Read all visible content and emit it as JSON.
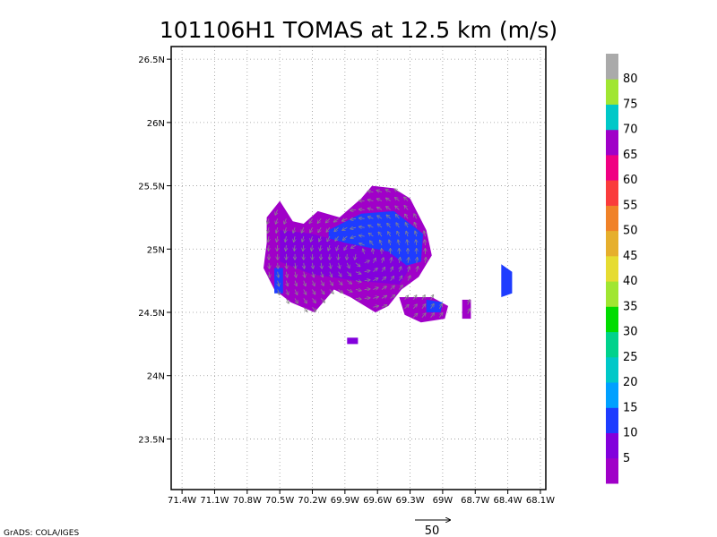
{
  "chart_data": {
    "type": "heatmap",
    "title": "101106H1 TOMAS at 12.5 km (m/s)",
    "credit": "GrADS: COLA/IGES",
    "grid": true,
    "x_ticks": [
      {
        "value": -71.4,
        "label": "71.4W"
      },
      {
        "value": -71.1,
        "label": "71.1W"
      },
      {
        "value": -70.8,
        "label": "70.8W"
      },
      {
        "value": -70.5,
        "label": "70.5W"
      },
      {
        "value": -70.2,
        "label": "70.2W"
      },
      {
        "value": -69.9,
        "label": "69.9W"
      },
      {
        "value": -69.6,
        "label": "69.6W"
      },
      {
        "value": -69.3,
        "label": "69.3W"
      },
      {
        "value": -69.0,
        "label": "69W"
      },
      {
        "value": -68.7,
        "label": "68.7W"
      },
      {
        "value": -68.4,
        "label": "68.4W"
      },
      {
        "value": -68.1,
        "label": "68.1W"
      }
    ],
    "y_ticks": [
      {
        "value": 23.5,
        "label": "23.5N"
      },
      {
        "value": 24.0,
        "label": "24N"
      },
      {
        "value": 24.5,
        "label": "24.5N"
      },
      {
        "value": 25.0,
        "label": "25N"
      },
      {
        "value": 25.5,
        "label": "25.5N"
      },
      {
        "value": 26.0,
        "label": "26N"
      },
      {
        "value": 26.5,
        "label": "26.5N"
      }
    ],
    "xlim": [
      -71.5,
      -68.05
    ],
    "ylim": [
      23.1,
      26.6
    ],
    "colorbar": {
      "levels": [
        "5",
        "10",
        "15",
        "20",
        "25",
        "30",
        "35",
        "40",
        "45",
        "50",
        "55",
        "60",
        "65",
        "70",
        "75",
        "80"
      ],
      "colors": [
        "#a000c8",
        "#8200dc",
        "#1e3cff",
        "#00a0ff",
        "#00c8c8",
        "#00d28c",
        "#00dc00",
        "#a0e632",
        "#e6dc32",
        "#e6af2d",
        "#f08228",
        "#fa3c3c",
        "#f00082",
        "#a000c8",
        "#00c8c8",
        "#a0e632",
        "#aaaaaa"
      ]
    },
    "reference_vector": {
      "label": "50",
      "value": 50
    },
    "wind_regions": [
      {
        "name": "main",
        "points": [
          [
            -70.62,
            25.25
          ],
          [
            -70.5,
            25.38
          ],
          [
            -70.38,
            25.22
          ],
          [
            -70.28,
            25.2
          ],
          [
            -70.15,
            25.3
          ],
          [
            -69.95,
            25.25
          ],
          [
            -69.75,
            25.4
          ],
          [
            -69.65,
            25.5
          ],
          [
            -69.45,
            25.48
          ],
          [
            -69.3,
            25.4
          ],
          [
            -69.15,
            25.15
          ],
          [
            -69.1,
            24.95
          ],
          [
            -69.22,
            24.78
          ],
          [
            -69.38,
            24.68
          ],
          [
            -69.5,
            24.55
          ],
          [
            -69.62,
            24.5
          ],
          [
            -69.85,
            24.62
          ],
          [
            -70.0,
            24.68
          ],
          [
            -70.1,
            24.58
          ],
          [
            -70.18,
            24.5
          ],
          [
            -70.4,
            24.58
          ],
          [
            -70.55,
            24.68
          ],
          [
            -70.65,
            24.85
          ],
          [
            -70.62,
            25.05
          ]
        ],
        "level": 0
      },
      {
        "name": "east-tail",
        "points": [
          [
            -69.4,
            24.62
          ],
          [
            -69.1,
            24.62
          ],
          [
            -68.95,
            24.55
          ],
          [
            -68.98,
            24.45
          ],
          [
            -69.2,
            24.42
          ],
          [
            -69.35,
            24.48
          ]
        ],
        "level": 0
      },
      {
        "name": "blob-68.7",
        "points": [
          [
            -68.82,
            24.6
          ],
          [
            -68.74,
            24.6
          ],
          [
            -68.74,
            24.45
          ],
          [
            -68.82,
            24.45
          ]
        ],
        "level": 0
      },
      {
        "name": "blob-68.4",
        "points": [
          [
            -68.46,
            24.88
          ],
          [
            -68.36,
            24.82
          ],
          [
            -68.36,
            24.65
          ],
          [
            -68.46,
            24.62
          ]
        ],
        "level": 2
      },
      {
        "name": "south-patch",
        "points": [
          [
            -69.88,
            24.3
          ],
          [
            -69.78,
            24.3
          ],
          [
            -69.78,
            24.25
          ],
          [
            -69.88,
            24.25
          ]
        ],
        "level": 1
      },
      {
        "name": "blue-core",
        "points": [
          [
            -70.05,
            25.15
          ],
          [
            -69.75,
            25.28
          ],
          [
            -69.45,
            25.3
          ],
          [
            -69.18,
            25.12
          ],
          [
            -69.2,
            24.9
          ],
          [
            -69.42,
            24.85
          ],
          [
            -69.55,
            25.0
          ],
          [
            -69.85,
            24.95
          ],
          [
            -70.05,
            25.0
          ]
        ],
        "level": 2
      },
      {
        "name": "violet-band",
        "points": [
          [
            -70.5,
            25.15
          ],
          [
            -70.2,
            25.12
          ],
          [
            -69.9,
            25.05
          ],
          [
            -69.5,
            24.98
          ],
          [
            -69.3,
            24.85
          ],
          [
            -69.4,
            24.72
          ],
          [
            -69.8,
            24.75
          ],
          [
            -70.2,
            24.8
          ],
          [
            -70.5,
            24.9
          ]
        ],
        "level": 1
      },
      {
        "name": "blue-left",
        "points": [
          [
            -70.55,
            24.85
          ],
          [
            -70.47,
            24.85
          ],
          [
            -70.47,
            24.65
          ],
          [
            -70.55,
            24.65
          ]
        ],
        "level": 2
      },
      {
        "name": "blue-tail",
        "points": [
          [
            -69.15,
            24.6
          ],
          [
            -69.0,
            24.58
          ],
          [
            -69.02,
            24.5
          ],
          [
            -69.15,
            24.5
          ]
        ],
        "level": 2
      }
    ]
  }
}
